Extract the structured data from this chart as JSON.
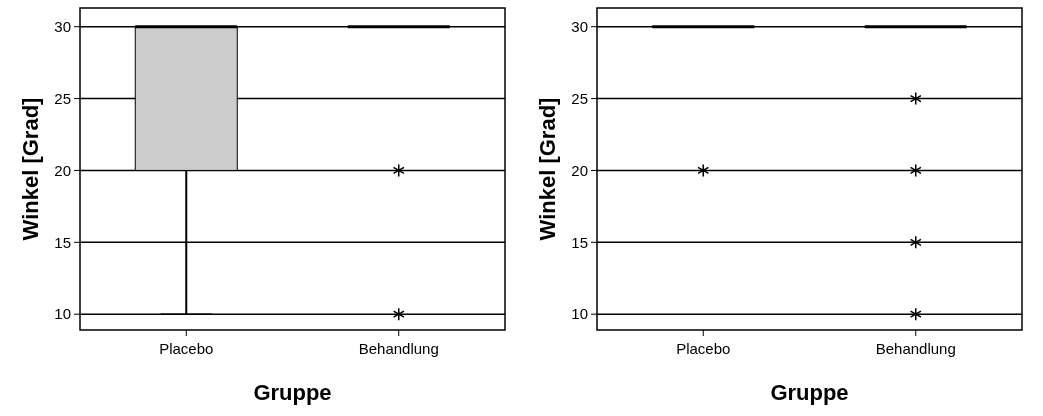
{
  "chart_data": [
    {
      "type": "box",
      "categories": [
        "Placebo",
        "Behandlung"
      ],
      "color": "#cccccc",
      "xlabel": "Gruppe",
      "ylabel": "Winkel [Grad]",
      "ylim": [
        8.9,
        31.3
      ],
      "yticks": [
        10,
        15,
        20,
        25,
        30
      ],
      "grid": "y",
      "boxes": [
        {
          "low": 10,
          "q1": 20,
          "median": 30,
          "q3": 30,
          "high": 30
        },
        {
          "low": 30,
          "q1": 30,
          "median": 30,
          "q3": 30,
          "high": 30,
          "outliers": [
            20,
            10
          ]
        }
      ]
    },
    {
      "type": "box",
      "categories": [
        "Placebo",
        "Behandlung"
      ],
      "color": "#cccccc",
      "xlabel": "Gruppe",
      "ylabel": "Winkel [Grad]",
      "ylim": [
        8.9,
        31.3
      ],
      "yticks": [
        10,
        15,
        20,
        25,
        30
      ],
      "grid": "y",
      "boxes": [
        {
          "low": 30,
          "q1": 30,
          "median": 30,
          "q3": 30,
          "high": 30,
          "outliers": [
            20
          ]
        },
        {
          "low": 30,
          "q1": 30,
          "median": 30,
          "q3": 30,
          "high": 30,
          "outliers": [
            25,
            20,
            15,
            10
          ]
        }
      ]
    }
  ]
}
